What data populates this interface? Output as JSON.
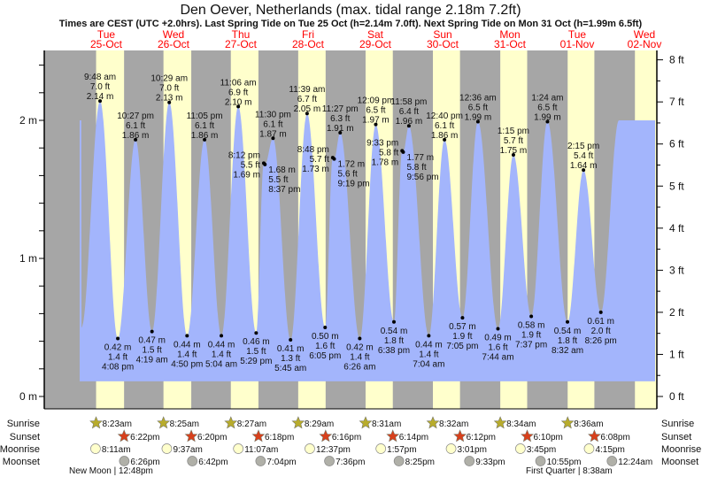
{
  "header": {
    "title": "Den Oever, Netherlands (max. tidal range 2.18m 7.2ft)",
    "subtitle": "Times are CEST (UTC +2.0hrs). Last Spring Tide on Tue 25 Oct (h=2.14m 7.0ft). Next Spring Tide on Mon 31 Oct (h=1.99m 6.5ft)"
  },
  "colors": {
    "night": "#a6a6a6",
    "day": "#ffffcc",
    "water": "#a3b5fc",
    "day_label": "#ff0000",
    "sunrise": "#b8ac2c",
    "sunset": "#d8401c",
    "moonrise": "#ffffcc",
    "moonset": "#b0b0a8"
  },
  "chart_data": {
    "type": "area",
    "title": "Den Oever, Netherlands (max. tidal range 2.18m 7.2ft)",
    "days": [
      {
        "name": "Tue",
        "date": "25-Oct"
      },
      {
        "name": "Wed",
        "date": "26-Oct"
      },
      {
        "name": "Thu",
        "date": "27-Oct"
      },
      {
        "name": "Fri",
        "date": "28-Oct"
      },
      {
        "name": "Sat",
        "date": "29-Oct"
      },
      {
        "name": "Sun",
        "date": "30-Oct"
      },
      {
        "name": "Mon",
        "date": "31-Oct"
      },
      {
        "name": "Tue",
        "date": "01-Nov"
      },
      {
        "name": "Wed",
        "date": "02-Nov"
      }
    ],
    "y_left": {
      "unit": "m",
      "range": [
        0,
        2.5
      ],
      "ticks": [
        "0 m",
        "1 m",
        "2 m"
      ],
      "tick_values": [
        0,
        1,
        2
      ]
    },
    "y_right": {
      "unit": "ft",
      "ticks": [
        "0 ft",
        "1 ft",
        "2 ft",
        "3 ft",
        "4 ft",
        "5 ft",
        "6 ft",
        "7 ft",
        "8 ft"
      ],
      "tick_values": [
        0,
        1,
        2,
        3,
        4,
        5,
        6,
        7,
        8
      ]
    },
    "extremes": [
      {
        "day": 0,
        "time": "9:48 am",
        "m": "2.14 m",
        "ft": "7.0 ft",
        "h": 2.14,
        "type": "high"
      },
      {
        "day": 0,
        "time": "4:08 pm",
        "m": "0.42 m",
        "ft": "1.4 ft",
        "h": 0.42,
        "type": "low"
      },
      {
        "day": 0,
        "time": "10:27 pm",
        "m": "1.86 m",
        "ft": "6.1 ft",
        "h": 1.86,
        "type": "high"
      },
      {
        "day": 1,
        "time": "4:19 am",
        "m": "0.47 m",
        "ft": "1.5 ft",
        "h": 0.47,
        "type": "low"
      },
      {
        "day": 1,
        "time": "10:29 am",
        "m": "2.13 m",
        "ft": "7.0 ft",
        "h": 2.13,
        "type": "high"
      },
      {
        "day": 1,
        "time": "4:50 pm",
        "m": "0.44 m",
        "ft": "1.4 ft",
        "h": 0.44,
        "type": "low"
      },
      {
        "day": 1,
        "time": "11:05 pm",
        "m": "1.86 m",
        "ft": "6.1 ft",
        "h": 1.86,
        "type": "high"
      },
      {
        "day": 2,
        "time": "5:04 am",
        "m": "0.44 m",
        "ft": "1.4 ft",
        "h": 0.44,
        "type": "low"
      },
      {
        "day": 2,
        "time": "11:06 am",
        "m": "2.10 m",
        "ft": "6.9 ft",
        "h": 2.1,
        "type": "high"
      },
      {
        "day": 2,
        "time": "5:29 pm",
        "m": "0.46 m",
        "ft": "1.5 ft",
        "h": 0.46,
        "type": "low"
      },
      {
        "day": 2,
        "time": "8:12 pm",
        "m": "1.69 m",
        "ft": "5.5 ft",
        "h": 1.69,
        "type": "high"
      },
      {
        "day": 2,
        "time": "8:37 pm",
        "m": "1.68 m",
        "ft": "5.5 ft",
        "h": 1.68,
        "type": "low"
      },
      {
        "day": 2,
        "time": "11:30 pm",
        "m": "1.87 m",
        "ft": "6.1 ft",
        "h": 1.87,
        "type": "high"
      },
      {
        "day": 3,
        "time": "5:45 am",
        "m": "0.41 m",
        "ft": "1.3 ft",
        "h": 0.41,
        "type": "low"
      },
      {
        "day": 3,
        "time": "11:39 am",
        "m": "2.05 m",
        "ft": "6.7 ft",
        "h": 2.05,
        "type": "high"
      },
      {
        "day": 3,
        "time": "6:05 pm",
        "m": "0.50 m",
        "ft": "1.6 ft",
        "h": 0.5,
        "type": "low"
      },
      {
        "day": 3,
        "time": "8:48 pm",
        "m": "1.73 m",
        "ft": "5.7 ft",
        "h": 1.73,
        "type": "high"
      },
      {
        "day": 3,
        "time": "9:19 pm",
        "m": "1.72 m",
        "ft": "5.6 ft",
        "h": 1.72,
        "type": "low"
      },
      {
        "day": 3,
        "time": "11:27 pm",
        "m": "1.91 m",
        "ft": "6.3 ft",
        "h": 1.91,
        "type": "high"
      },
      {
        "day": 4,
        "time": "6:26 am",
        "m": "0.42 m",
        "ft": "1.4 ft",
        "h": 0.42,
        "type": "low"
      },
      {
        "day": 4,
        "time": "12:09 pm",
        "m": "1.97 m",
        "ft": "6.5 ft",
        "h": 1.97,
        "type": "high"
      },
      {
        "day": 4,
        "time": "6:38 pm",
        "m": "0.54 m",
        "ft": "1.8 ft",
        "h": 0.54,
        "type": "low"
      },
      {
        "day": 4,
        "time": "9:33 pm",
        "m": "1.78 m",
        "ft": "5.8 ft",
        "h": 1.78,
        "type": "high"
      },
      {
        "day": 4,
        "time": "9:56 pm",
        "m": "1.77 m",
        "ft": "5.8 ft",
        "h": 1.77,
        "type": "low"
      },
      {
        "day": 4,
        "time": "11:58 pm",
        "m": "1.96 m",
        "ft": "6.4 ft",
        "h": 1.96,
        "type": "high"
      },
      {
        "day": 5,
        "time": "7:04 am",
        "m": "0.44 m",
        "ft": "1.4 ft",
        "h": 0.44,
        "type": "low"
      },
      {
        "day": 5,
        "time": "12:40 pm",
        "m": "1.86 m",
        "ft": "6.1 ft",
        "h": 1.86,
        "type": "high"
      },
      {
        "day": 5,
        "time": "7:05 pm",
        "m": "0.57 m",
        "ft": "1.9 ft",
        "h": 0.57,
        "type": "low"
      },
      {
        "day": 6,
        "time": "12:36 am",
        "m": "1.99 m",
        "ft": "6.5 ft",
        "h": 1.99,
        "type": "high"
      },
      {
        "day": 6,
        "time": "7:44 am",
        "m": "0.49 m",
        "ft": "1.6 ft",
        "h": 0.49,
        "type": "low"
      },
      {
        "day": 6,
        "time": "1:15 pm",
        "m": "1.75 m",
        "ft": "5.7 ft",
        "h": 1.75,
        "type": "high"
      },
      {
        "day": 6,
        "time": "7:37 pm",
        "m": "0.58 m",
        "ft": "1.9 ft",
        "h": 0.58,
        "type": "low"
      },
      {
        "day": 7,
        "time": "1:24 am",
        "m": "1.99 m",
        "ft": "6.5 ft",
        "h": 1.99,
        "type": "high"
      },
      {
        "day": 7,
        "time": "8:32 am",
        "m": "0.54 m",
        "ft": "1.8 ft",
        "h": 0.54,
        "type": "low"
      },
      {
        "day": 7,
        "time": "2:15 pm",
        "m": "1.64 m",
        "ft": "5.4 ft",
        "h": 1.64,
        "type": "high"
      },
      {
        "day": 7,
        "time": "8:26 pm",
        "m": "0.61 m",
        "ft": "2.0 ft",
        "h": 0.61,
        "type": "low"
      }
    ]
  },
  "astro": {
    "row_labels": {
      "sunrise": "Sunrise",
      "sunset": "Sunset",
      "moonrise": "Moonrise",
      "moonset": "Moonset"
    },
    "sunrise": [
      "8:23am",
      "8:25am",
      "8:27am",
      "8:29am",
      "8:31am",
      "8:32am",
      "8:34am",
      "8:36am"
    ],
    "sunset": [
      "6:22pm",
      "6:20pm",
      "6:18pm",
      "6:16pm",
      "6:14pm",
      "6:12pm",
      "6:10pm",
      "6:08pm"
    ],
    "moonrise": [
      "8:11am",
      "9:37am",
      "11:07am",
      "12:37pm",
      "1:57pm",
      "3:01pm",
      "3:45pm",
      "4:15pm"
    ],
    "moonset": [
      "6:26pm",
      "6:42pm",
      "7:04pm",
      "7:36pm",
      "8:25pm",
      "9:33pm",
      "10:55pm",
      "12:24am"
    ],
    "phases": [
      {
        "label": "New Moon | 12:48pm",
        "day": 0
      },
      {
        "label": "First Quarter | 8:38am",
        "day": 7
      }
    ]
  }
}
